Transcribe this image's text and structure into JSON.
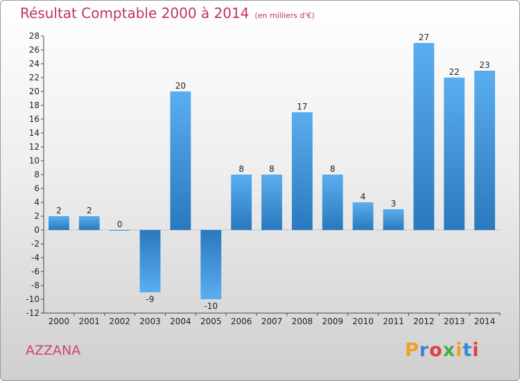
{
  "header": {
    "title": "Résultat Comptable 2000 à 2014",
    "subtitle": "(en milliers d'€)"
  },
  "commune": "AZZANA",
  "logo": {
    "text": "Proxiti",
    "colors": [
      "#f0a020",
      "#3a86d8",
      "#e04040",
      "#40b040",
      "#f0a020",
      "#3a86d8",
      "#e04040"
    ]
  },
  "chart_data": {
    "type": "bar",
    "categories": [
      "2000",
      "2001",
      "2002",
      "2003",
      "2004",
      "2005",
      "2006",
      "2007",
      "2008",
      "2009",
      "2010",
      "2011",
      "2012",
      "2013",
      "2014"
    ],
    "values": [
      2,
      2,
      0,
      -9,
      20,
      -10,
      8,
      8,
      17,
      8,
      4,
      3,
      27,
      22,
      23
    ],
    "value_labels": [
      "2",
      "2",
      "0",
      "-9",
      "20",
      "-10",
      "8",
      "8",
      "17",
      "8",
      "4",
      "3",
      "27",
      "22",
      "23"
    ],
    "title": "Résultat Comptable 2000 à 2014",
    "subtitle": "(en milliers d'€)",
    "ylim": [
      -12,
      28
    ],
    "yticks": [
      -12,
      -10,
      -8,
      -6,
      -4,
      -2,
      0,
      2,
      4,
      6,
      8,
      10,
      12,
      14,
      16,
      18,
      20,
      22,
      24,
      26,
      28
    ],
    "grid": false,
    "bar_color": "#3a8fd4"
  }
}
